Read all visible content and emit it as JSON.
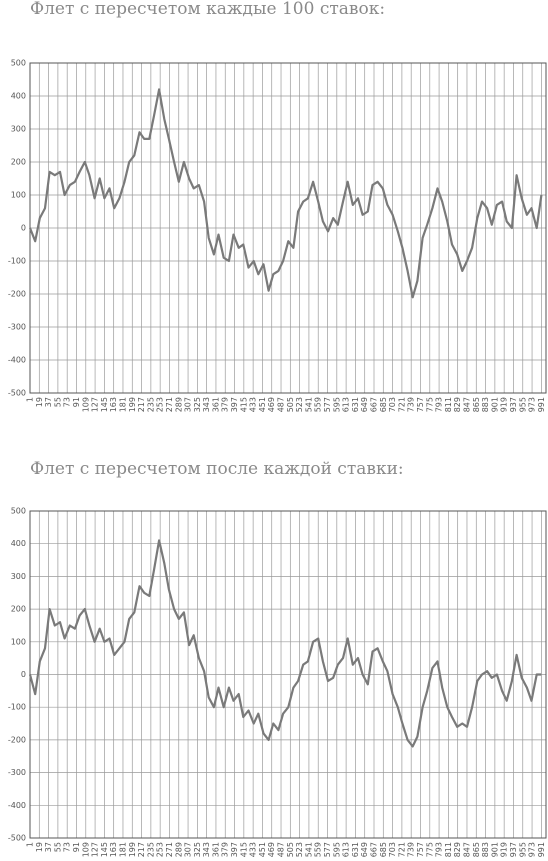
{
  "chart_data": [
    {
      "type": "line",
      "title": "Флет с пересчетом каждые 100 ставок:",
      "color": "#7a7a7a",
      "grid": true,
      "x": [
        1,
        11,
        20,
        30,
        39,
        49,
        59,
        68,
        78,
        88,
        97,
        107,
        116,
        126,
        136,
        145,
        155,
        164,
        174,
        184,
        193,
        203,
        213,
        222,
        232,
        241,
        251,
        261,
        270,
        280,
        289,
        299,
        309,
        318,
        328,
        338,
        347,
        357,
        366,
        376,
        386,
        395,
        405,
        414,
        424,
        434,
        443,
        453,
        463,
        472,
        482,
        491,
        501,
        511,
        520,
        530,
        539,
        549,
        559,
        568,
        578,
        588,
        597,
        607,
        616,
        626,
        636,
        645,
        655,
        664,
        674,
        684,
        693,
        703,
        713,
        722,
        732,
        742,
        751,
        761,
        770,
        780,
        790,
        799,
        809,
        818,
        828,
        838,
        847,
        857,
        867,
        876,
        886,
        895,
        905,
        915,
        924,
        934,
        943,
        953,
        963,
        972,
        982,
        991
      ],
      "values": [
        0,
        -40,
        30,
        60,
        170,
        160,
        170,
        100,
        130,
        140,
        170,
        200,
        160,
        90,
        150,
        90,
        120,
        60,
        90,
        140,
        200,
        220,
        290,
        270,
        270,
        340,
        420,
        330,
        270,
        200,
        140,
        200,
        150,
        120,
        130,
        80,
        -30,
        -80,
        -20,
        -90,
        -100,
        -20,
        -60,
        -50,
        -120,
        -100,
        -140,
        -110,
        -190,
        -140,
        -130,
        -100,
        -40,
        -60,
        50,
        80,
        90,
        140,
        80,
        20,
        -10,
        30,
        10,
        80,
        140,
        70,
        90,
        40,
        50,
        130,
        140,
        120,
        70,
        40,
        -10,
        -60,
        -130,
        -210,
        -160,
        -30,
        10,
        60,
        120,
        80,
        20,
        -50,
        -80,
        -130,
        -100,
        -60,
        30,
        80,
        60,
        10,
        70,
        80,
        20,
        0,
        160,
        90,
        40,
        60,
        0,
        100
      ],
      "xlim": [
        1,
        1000
      ],
      "ylim": [
        -500,
        500
      ],
      "xticks": [
        1,
        19,
        37,
        55,
        73,
        91,
        109,
        127,
        145,
        163,
        181,
        199,
        217,
        235,
        253,
        271,
        289,
        307,
        325,
        343,
        361,
        379,
        397,
        415,
        433,
        451,
        469,
        487,
        505,
        523,
        541,
        559,
        577,
        595,
        613,
        631,
        649,
        667,
        685,
        703,
        721,
        739,
        757,
        775,
        793,
        811,
        829,
        847,
        865,
        883,
        901,
        919,
        937,
        955,
        973,
        991
      ],
      "yticks": [
        -500,
        -400,
        -300,
        -200,
        -100,
        0,
        100,
        200,
        300,
        400,
        500
      ]
    },
    {
      "type": "line",
      "title": "Флет с пересчетом после каждой ставки:",
      "color": "#7a7a7a",
      "grid": true,
      "x": [
        1,
        11,
        20,
        30,
        39,
        49,
        59,
        68,
        78,
        88,
        97,
        107,
        116,
        126,
        136,
        145,
        155,
        164,
        174,
        184,
        193,
        203,
        213,
        222,
        232,
        241,
        251,
        261,
        270,
        280,
        289,
        299,
        309,
        318,
        328,
        338,
        347,
        357,
        366,
        376,
        386,
        395,
        405,
        414,
        424,
        434,
        443,
        453,
        463,
        472,
        482,
        491,
        501,
        511,
        520,
        530,
        539,
        549,
        559,
        568,
        578,
        588,
        597,
        607,
        616,
        626,
        636,
        645,
        655,
        664,
        674,
        684,
        693,
        703,
        713,
        722,
        732,
        742,
        751,
        761,
        770,
        780,
        790,
        799,
        809,
        818,
        828,
        838,
        847,
        857,
        867,
        876,
        886,
        895,
        905,
        915,
        924,
        934,
        943,
        953,
        963,
        972,
        982,
        991
      ],
      "values": [
        0,
        -60,
        40,
        80,
        200,
        150,
        160,
        110,
        150,
        140,
        180,
        200,
        150,
        100,
        140,
        100,
        110,
        60,
        80,
        100,
        170,
        190,
        270,
        250,
        240,
        320,
        410,
        340,
        260,
        200,
        170,
        190,
        90,
        120,
        50,
        10,
        -70,
        -100,
        -40,
        -100,
        -40,
        -80,
        -60,
        -130,
        -110,
        -150,
        -120,
        -180,
        -200,
        -150,
        -170,
        -120,
        -100,
        -40,
        -20,
        30,
        40,
        100,
        110,
        40,
        -20,
        -10,
        30,
        50,
        110,
        30,
        50,
        0,
        -30,
        70,
        80,
        40,
        10,
        -60,
        -100,
        -150,
        -200,
        -220,
        -190,
        -100,
        -50,
        20,
        40,
        -40,
        -100,
        -130,
        -160,
        -150,
        -160,
        -100,
        -20,
        0,
        10,
        -10,
        0,
        -50,
        -80,
        -20,
        60,
        -10,
        -40,
        -80,
        0,
        0
      ],
      "xlim": [
        1,
        1000
      ],
      "ylim": [
        -500,
        500
      ],
      "xticks": [
        1,
        19,
        37,
        55,
        73,
        91,
        109,
        127,
        145,
        163,
        181,
        199,
        217,
        235,
        253,
        271,
        289,
        307,
        325,
        343,
        361,
        379,
        397,
        415,
        433,
        451,
        469,
        487,
        505,
        523,
        541,
        559,
        577,
        595,
        613,
        631,
        649,
        667,
        685,
        703,
        721,
        739,
        757,
        775,
        793,
        811,
        829,
        847,
        865,
        883,
        901,
        919,
        937,
        955,
        973,
        991
      ],
      "yticks": [
        -500,
        -400,
        -300,
        -200,
        -100,
        0,
        100,
        200,
        300,
        400,
        500
      ]
    }
  ]
}
